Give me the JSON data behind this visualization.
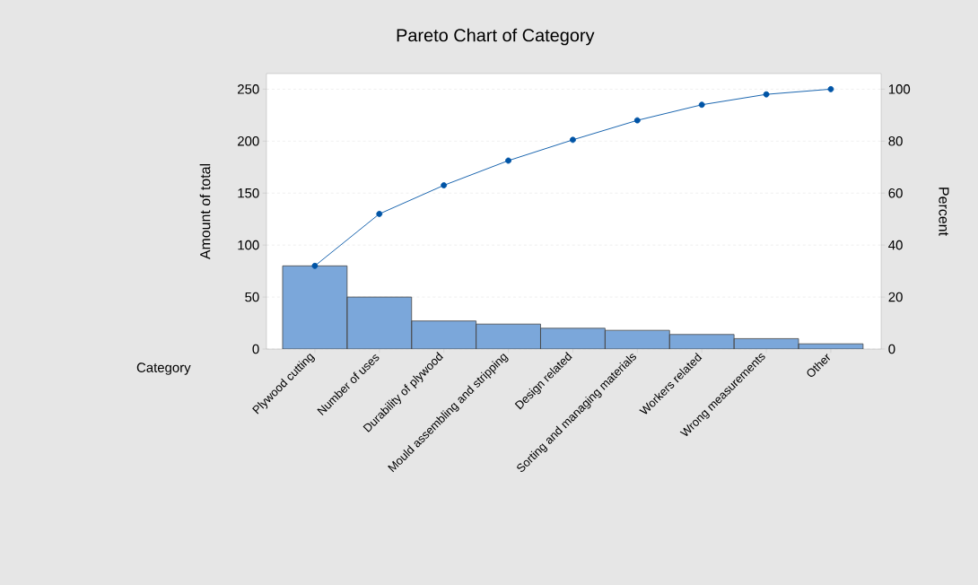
{
  "chart_data": {
    "type": "bar",
    "title": "Pareto Chart of Category",
    "xlabel": "Category",
    "ylabel": "Amount of total",
    "y2label": "Percent",
    "categories": [
      "Plywood cutting",
      "Number of uses",
      "Durability of plywood",
      "Mould assembling and stripping",
      "Design related",
      "Sorting and managing materials",
      "Workers related",
      "Wrong measurements",
      "Other"
    ],
    "series": [
      {
        "color": "#7ba7da",
        "values": [
          80,
          50,
          27,
          24,
          20,
          18,
          14,
          10,
          5
        ]
      },
      {
        "type": "line",
        "axis": "y2",
        "color": "#0054a6",
        "values": [
          32,
          52,
          63,
          72.5,
          80.5,
          88,
          94,
          98,
          100
        ]
      }
    ],
    "ylim": [
      0,
      265
    ],
    "yticks": [
      0,
      50,
      100,
      150,
      200,
      250
    ],
    "y2lim": [
      0,
      106
    ],
    "y2ticks": [
      0,
      20,
      40,
      60,
      80,
      100
    ],
    "grid": "y",
    "marker": "circle"
  }
}
